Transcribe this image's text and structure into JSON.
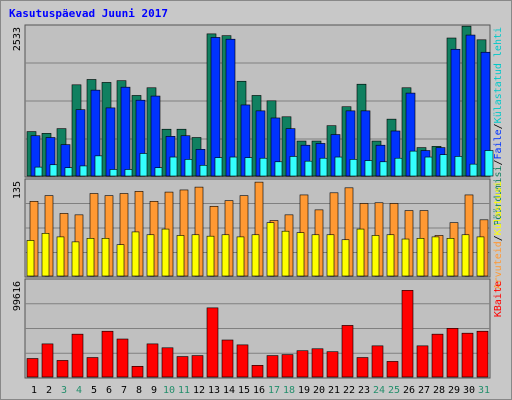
{
  "chart_data": {
    "type": "bar",
    "title": "Kasutuspäevad Juuni 2017",
    "categories": [
      "1",
      "2",
      "3",
      "4",
      "5",
      "6",
      "7",
      "8",
      "9",
      "10",
      "11",
      "12",
      "13",
      "14",
      "15",
      "16",
      "17",
      "18",
      "19",
      "20",
      "21",
      "22",
      "23",
      "24",
      "25",
      "26",
      "27",
      "28",
      "29",
      "30",
      "31"
    ],
    "weekend_days": [
      "3",
      "4",
      "10",
      "11",
      "17",
      "18",
      "24",
      "25",
      "31"
    ],
    "panels": [
      {
        "id": "hits",
        "ymax_label": "2533",
        "ymax": 2533,
        "right_labels": [
          "Pöördumisi",
          "/",
          "Faile",
          "/",
          "Külastatud lehti"
        ],
        "series": [
          {
            "name": "Pöördumisi",
            "color": "#108060",
            "values": [
              750,
              720,
              800,
              1540,
              1630,
              1580,
              1610,
              1360,
              1490,
              790,
              790,
              650,
              2400,
              2370,
              1600,
              1360,
              1270,
              1000,
              590,
              590,
              850,
              1170,
              1550,
              590,
              960,
              1490,
              480,
              500,
              2330,
              2530,
              2300
            ]
          },
          {
            "name": "Faile",
            "color": "#0033ff",
            "values": [
              680,
              650,
              530,
              1120,
              1450,
              1150,
              1500,
              1280,
              1350,
              670,
              680,
              450,
              2340,
              2310,
              1200,
              1100,
              980,
              800,
              520,
              550,
              700,
              1100,
              1100,
              520,
              760,
              1400,
              430,
              480,
              2140,
              2380,
              2090
            ]
          },
          {
            "name": "Külastatud lehti",
            "color": "#33ffff",
            "values": [
              150,
              190,
              140,
              170,
              340,
              110,
              110,
              380,
              140,
              320,
              280,
              180,
              310,
              320,
              310,
              300,
              240,
              330,
              250,
              300,
              320,
              280,
              260,
              240,
              300,
              420,
              320,
              360,
              330,
              200,
              430
            ]
          }
        ]
      },
      {
        "id": "visits",
        "ymax_label": "135",
        "ymax": 135,
        "right_labels": [
          "Arvuteid",
          "/",
          "Külastusi"
        ],
        "series": [
          {
            "name": "Arvuteid",
            "color": "#ff9933",
            "values": [
              105,
              113,
              88,
              86,
              116,
              113,
              116,
              119,
              105,
              118,
              121,
              125,
              98,
              106,
              113,
              132,
              78,
              86,
              114,
              93,
              117,
              124,
              102,
              103,
              102,
              92,
              92,
              57,
              75,
              114,
              79
            ]
          },
          {
            "name": "Külastusi",
            "color": "#ffff00",
            "values": [
              50,
              60,
              55,
              48,
              53,
              53,
              44,
              62,
              58,
              66,
              57,
              58,
              56,
              58,
              55,
              58,
              75,
              63,
              61,
              58,
              58,
              51,
              66,
              57,
              58,
              52,
              53,
              55,
              53,
              58,
              55
            ]
          }
        ]
      },
      {
        "id": "kbytes",
        "ymax_label": "99616",
        "ymax": 99616,
        "right_labels": [
          "KBaite"
        ],
        "series": [
          {
            "name": "KBaite",
            "color": "#ff0000",
            "values": [
              19000,
              34000,
              17000,
              44000,
              20000,
              47000,
              39000,
              11000,
              34000,
              30000,
              21000,
              22000,
              71000,
              38000,
              33000,
              12000,
              22000,
              23000,
              27000,
              29000,
              26000,
              53000,
              20000,
              32000,
              16000,
              89000,
              32000,
              44000,
              50000,
              45000,
              47000
            ]
          }
        ]
      }
    ]
  },
  "colors": {
    "title": "#0000ff",
    "weekday_label": "#000000",
    "weekend_label": "#238e6b",
    "panel_bg": "#c0c0c0",
    "frame_bg": "#c8c8c8",
    "grid": "#808080"
  }
}
